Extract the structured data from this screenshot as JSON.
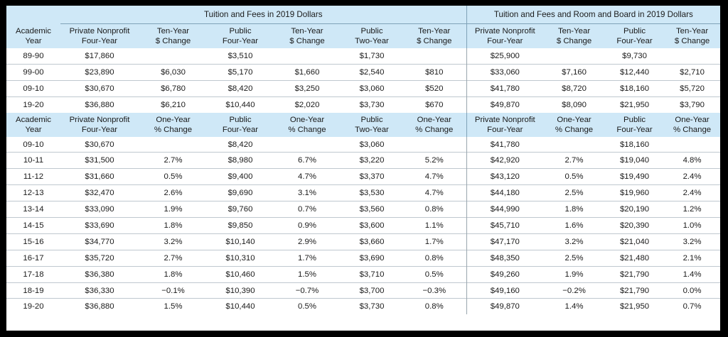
{
  "table": {
    "group_headers": {
      "tuition": "Tuition and Fees in 2019 Dollars",
      "room_board": "Tuition and Fees and Room and Board in 2019 Dollars"
    },
    "header1": [
      [
        "Academic",
        "Year"
      ],
      [
        "Private Nonprofit",
        "Four-Year"
      ],
      [
        "Ten-Year",
        "$ Change"
      ],
      [
        "Public",
        "Four-Year"
      ],
      [
        "Ten-Year",
        "$ Change"
      ],
      [
        "Public",
        "Two-Year"
      ],
      [
        "Ten-Year",
        "$ Change"
      ],
      [
        "Private Nonprofit",
        "Four-Year"
      ],
      [
        "Ten-Year",
        "$ Change"
      ],
      [
        "Public",
        "Four-Year"
      ],
      [
        "Ten-Year",
        "$ Change"
      ]
    ],
    "rows1": [
      [
        "89-90",
        "$17,860",
        "",
        "$3,510",
        "",
        "$1,730",
        "",
        "$25,900",
        "",
        "$9,730",
        ""
      ],
      [
        "99-00",
        "$23,890",
        "$6,030",
        "$5,170",
        "$1,660",
        "$2,540",
        "$810",
        "$33,060",
        "$7,160",
        "$12,440",
        "$2,710"
      ],
      [
        "09-10",
        "$30,670",
        "$6,780",
        "$8,420",
        "$3,250",
        "$3,060",
        "$520",
        "$41,780",
        "$8,720",
        "$18,160",
        "$5,720"
      ],
      [
        "19-20",
        "$36,880",
        "$6,210",
        "$10,440",
        "$2,020",
        "$3,730",
        "$670",
        "$49,870",
        "$8,090",
        "$21,950",
        "$3,790"
      ]
    ],
    "header2": [
      [
        "Academic",
        "Year"
      ],
      [
        "Private Nonprofit",
        "Four-Year"
      ],
      [
        "One-Year",
        "% Change"
      ],
      [
        "Public",
        "Four-Year"
      ],
      [
        "One-Year",
        "% Change"
      ],
      [
        "Public",
        "Two-Year"
      ],
      [
        "One-Year",
        "% Change"
      ],
      [
        "Private Nonprofit",
        "Four-Year"
      ],
      [
        "One-Year",
        "% Change"
      ],
      [
        "Public",
        "Four-Year"
      ],
      [
        "One-Year",
        "% Change"
      ]
    ],
    "rows2": [
      [
        "09-10",
        "$30,670",
        "",
        "$8,420",
        "",
        "$3,060",
        "",
        "$41,780",
        "",
        "$18,160",
        ""
      ],
      [
        "10-11",
        "$31,500",
        "2.7%",
        "$8,980",
        "6.7%",
        "$3,220",
        "5.2%",
        "$42,920",
        "2.7%",
        "$19,040",
        "4.8%"
      ],
      [
        "11-12",
        "$31,660",
        "0.5%",
        "$9,400",
        "4.7%",
        "$3,370",
        "4.7%",
        "$43,120",
        "0.5%",
        "$19,490",
        "2.4%"
      ],
      [
        "12-13",
        "$32,470",
        "2.6%",
        "$9,690",
        "3.1%",
        "$3,530",
        "4.7%",
        "$44,180",
        "2.5%",
        "$19,960",
        "2.4%"
      ],
      [
        "13-14",
        "$33,090",
        "1.9%",
        "$9,760",
        "0.7%",
        "$3,560",
        "0.8%",
        "$44,990",
        "1.8%",
        "$20,190",
        "1.2%"
      ],
      [
        "14-15",
        "$33,690",
        "1.8%",
        "$9,850",
        "0.9%",
        "$3,600",
        "1.1%",
        "$45,710",
        "1.6%",
        "$20,390",
        "1.0%"
      ],
      [
        "15-16",
        "$34,770",
        "3.2%",
        "$10,140",
        "2.9%",
        "$3,660",
        "1.7%",
        "$47,170",
        "3.2%",
        "$21,040",
        "3.2%"
      ],
      [
        "16-17",
        "$35,720",
        "2.7%",
        "$10,310",
        "1.7%",
        "$3,690",
        "0.8%",
        "$48,350",
        "2.5%",
        "$21,480",
        "2.1%"
      ],
      [
        "17-18",
        "$36,380",
        "1.8%",
        "$10,460",
        "1.5%",
        "$3,710",
        "0.5%",
        "$49,260",
        "1.9%",
        "$21,790",
        "1.4%"
      ],
      [
        "18-19",
        "$36,330",
        "−0.1%",
        "$10,390",
        "−0.7%",
        "$3,700",
        "−0.3%",
        "$49,160",
        "−0.2%",
        "$21,790",
        "0.0%"
      ],
      [
        "19-20",
        "$36,880",
        "1.5%",
        "$10,440",
        "0.5%",
        "$3,730",
        "0.8%",
        "$49,870",
        "1.4%",
        "$21,950",
        "0.7%"
      ]
    ]
  }
}
